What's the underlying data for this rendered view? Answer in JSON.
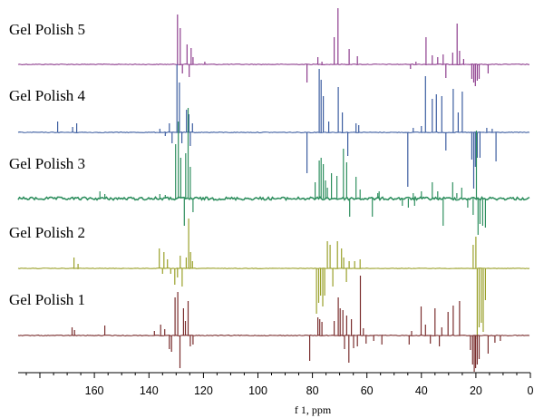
{
  "chart_data": {
    "type": "line",
    "title": "",
    "xlabel": "f 1, ppm",
    "ylabel": "",
    "x_reversed": true,
    "xlim": [
      188,
      0
    ],
    "x_ticks": [
      160,
      140,
      120,
      100,
      80,
      60,
      40,
      20,
      0
    ],
    "x_tick_labels": [
      "160",
      "140",
      "120",
      "100",
      "80",
      "60",
      "40",
      "20",
      "0"
    ],
    "grid": false,
    "legend": "none",
    "series": [
      {
        "name": "Gel Polish 5",
        "color": "#8e3e8e",
        "noise": 0.4,
        "peaks": [
          [
            129.5,
            55
          ],
          [
            128.5,
            40
          ],
          [
            127.7,
            -10
          ],
          [
            126,
            22
          ],
          [
            125.2,
            -14
          ],
          [
            124.5,
            18
          ],
          [
            123.8,
            8
          ],
          [
            119.5,
            3
          ],
          [
            82,
            -20
          ],
          [
            78,
            8
          ],
          [
            76.5,
            3
          ],
          [
            72,
            30
          ],
          [
            70.6,
            62
          ],
          [
            66.5,
            17
          ],
          [
            63.5,
            9
          ],
          [
            44,
            -5
          ],
          [
            42,
            3
          ],
          [
            38.3,
            30
          ],
          [
            36,
            10
          ],
          [
            34,
            8
          ],
          [
            32,
            11
          ],
          [
            31,
            -15
          ],
          [
            28.5,
            13
          ],
          [
            26.9,
            45
          ],
          [
            26,
            15
          ],
          [
            24.5,
            6
          ],
          [
            21.5,
            -16
          ],
          [
            20.8,
            -20
          ],
          [
            20.2,
            -24
          ],
          [
            19.5,
            -18
          ],
          [
            18.8,
            -16
          ],
          [
            15.5,
            -10
          ]
        ]
      },
      {
        "name": "Gel Polish 4",
        "color": "#3c5da0",
        "noise": 0.4,
        "peaks": [
          [
            173.5,
            12
          ],
          [
            168,
            6
          ],
          [
            166.5,
            10
          ],
          [
            136,
            4
          ],
          [
            134,
            -4
          ],
          [
            132.5,
            10
          ],
          [
            131.5,
            -12
          ],
          [
            129.7,
            75
          ],
          [
            128.8,
            55
          ],
          [
            127.9,
            -12
          ],
          [
            126.2,
            25
          ],
          [
            125.3,
            20
          ],
          [
            124.8,
            -15
          ],
          [
            124,
            10
          ],
          [
            82,
            -45
          ],
          [
            77.5,
            70
          ],
          [
            76.8,
            58
          ],
          [
            76,
            40
          ],
          [
            74,
            12
          ],
          [
            70.5,
            50
          ],
          [
            69,
            22
          ],
          [
            67,
            -26
          ],
          [
            64,
            10
          ],
          [
            63,
            8
          ],
          [
            45,
            -60
          ],
          [
            43,
            5
          ],
          [
            40,
            7
          ],
          [
            38.5,
            62
          ],
          [
            36,
            37
          ],
          [
            34.5,
            42
          ],
          [
            32.5,
            40
          ],
          [
            31,
            -20
          ],
          [
            28.3,
            48
          ],
          [
            26.5,
            22
          ],
          [
            25,
            45
          ],
          [
            21.5,
            -30
          ],
          [
            20.8,
            -62
          ],
          [
            20.2,
            -38
          ],
          [
            19.5,
            -28
          ],
          [
            18.5,
            -28
          ],
          [
            16,
            5
          ],
          [
            14,
            4
          ],
          [
            12.6,
            -32
          ]
        ]
      },
      {
        "name": "Gel Polish 3",
        "color": "#2f8f5f",
        "noise": 1.6,
        "peaks": [
          [
            158,
            8
          ],
          [
            156.2,
            5
          ],
          [
            136,
            5
          ],
          [
            134,
            4
          ],
          [
            130.2,
            60
          ],
          [
            129.2,
            85
          ],
          [
            128.3,
            45
          ],
          [
            127,
            -30
          ],
          [
            126.5,
            50
          ],
          [
            125.6,
            100
          ],
          [
            124.8,
            35
          ],
          [
            123.8,
            -15
          ],
          [
            79,
            18
          ],
          [
            77.5,
            42
          ],
          [
            76.8,
            45
          ],
          [
            76,
            38
          ],
          [
            75.2,
            20
          ],
          [
            74.5,
            12
          ],
          [
            73,
            28
          ],
          [
            71,
            25
          ],
          [
            68.6,
            55
          ],
          [
            67.4,
            40
          ],
          [
            66.3,
            -20
          ],
          [
            64,
            24
          ],
          [
            62.5,
            10
          ],
          [
            58,
            -20
          ],
          [
            56,
            6
          ],
          [
            55.5,
            8
          ],
          [
            47,
            -8
          ],
          [
            44.8,
            -10
          ],
          [
            43,
            6
          ],
          [
            42.5,
            -8
          ],
          [
            40,
            8
          ],
          [
            36,
            18
          ],
          [
            34,
            8
          ],
          [
            32,
            -30
          ],
          [
            28.5,
            18
          ],
          [
            27,
            6
          ],
          [
            25.2,
            12
          ],
          [
            23,
            -10
          ],
          [
            21,
            -18
          ],
          [
            19.8,
            75
          ],
          [
            19.2,
            -40
          ],
          [
            18.5,
            -28
          ],
          [
            17.5,
            -30
          ],
          [
            16.5,
            -32
          ]
        ]
      },
      {
        "name": "Gel Polish 2",
        "color": "#9aa02a",
        "noise": 0.3,
        "peaks": [
          [
            167.5,
            12
          ],
          [
            166,
            5
          ],
          [
            136.2,
            22
          ],
          [
            135,
            -6
          ],
          [
            134.5,
            18
          ],
          [
            133.2,
            10
          ],
          [
            132,
            -6
          ],
          [
            130.5,
            -18
          ],
          [
            129.5,
            -10
          ],
          [
            128.5,
            14
          ],
          [
            127.8,
            -20
          ],
          [
            126.3,
            12
          ],
          [
            125.4,
            55
          ],
          [
            124.7,
            18
          ],
          [
            124,
            8
          ],
          [
            78.5,
            -50
          ],
          [
            77.7,
            -38
          ],
          [
            77,
            -30
          ],
          [
            76.2,
            -42
          ],
          [
            75.5,
            -30
          ],
          [
            74.5,
            30
          ],
          [
            73.5,
            26
          ],
          [
            72.5,
            -20
          ],
          [
            70.8,
            30
          ],
          [
            69.3,
            22
          ],
          [
            68.5,
            12
          ],
          [
            67.5,
            -15
          ],
          [
            66.5,
            8
          ],
          [
            64.5,
            8
          ],
          [
            62.5,
            10
          ],
          [
            21,
            26
          ],
          [
            20,
            35
          ],
          [
            19.5,
            -78
          ],
          [
            18.8,
            -65
          ],
          [
            18,
            -60
          ],
          [
            17.3,
            -70
          ],
          [
            16.5,
            -35
          ]
        ]
      },
      {
        "name": "Gel Polish 1",
        "color": "#7a2e2e",
        "noise": 0.4,
        "peaks": [
          [
            168.2,
            9
          ],
          [
            167.3,
            6
          ],
          [
            156.2,
            11
          ],
          [
            138,
            5
          ],
          [
            135.7,
            12
          ],
          [
            134.2,
            7
          ],
          [
            132.5,
            -15
          ],
          [
            131.7,
            -18
          ],
          [
            130.4,
            42
          ],
          [
            129.4,
            48
          ],
          [
            128.6,
            -36
          ],
          [
            127.3,
            30
          ],
          [
            126.6,
            16
          ],
          [
            125.6,
            38
          ],
          [
            124.8,
            -12
          ],
          [
            123.8,
            -10
          ],
          [
            81,
            -28
          ],
          [
            78,
            20
          ],
          [
            77.3,
            18
          ],
          [
            76.5,
            15
          ],
          [
            72,
            16
          ],
          [
            70.5,
            42
          ],
          [
            69.8,
            30
          ],
          [
            68.8,
            28
          ],
          [
            68.2,
            -15
          ],
          [
            67.4,
            22
          ],
          [
            66.6,
            -30
          ],
          [
            65.7,
            18
          ],
          [
            64.9,
            -14
          ],
          [
            63.5,
            -12
          ],
          [
            62.4,
            66
          ],
          [
            61.3,
            8
          ],
          [
            60.3,
            -9
          ],
          [
            57.5,
            -6
          ],
          [
            54.5,
            -10
          ],
          [
            44.5,
            -10
          ],
          [
            43.6,
            5
          ],
          [
            40.1,
            32
          ],
          [
            38.5,
            12
          ],
          [
            36.7,
            -9
          ],
          [
            35,
            30
          ],
          [
            33.4,
            -12
          ],
          [
            32.5,
            9
          ],
          [
            30.2,
            26
          ],
          [
            28.3,
            33
          ],
          [
            26,
            38
          ],
          [
            22,
            -16
          ],
          [
            21.2,
            -32
          ],
          [
            20.6,
            -40
          ],
          [
            20.1,
            -36
          ],
          [
            19.5,
            -32
          ],
          [
            18.8,
            -26
          ],
          [
            15.5,
            -20
          ],
          [
            13,
            -8
          ],
          [
            11,
            -6
          ]
        ]
      }
    ]
  }
}
